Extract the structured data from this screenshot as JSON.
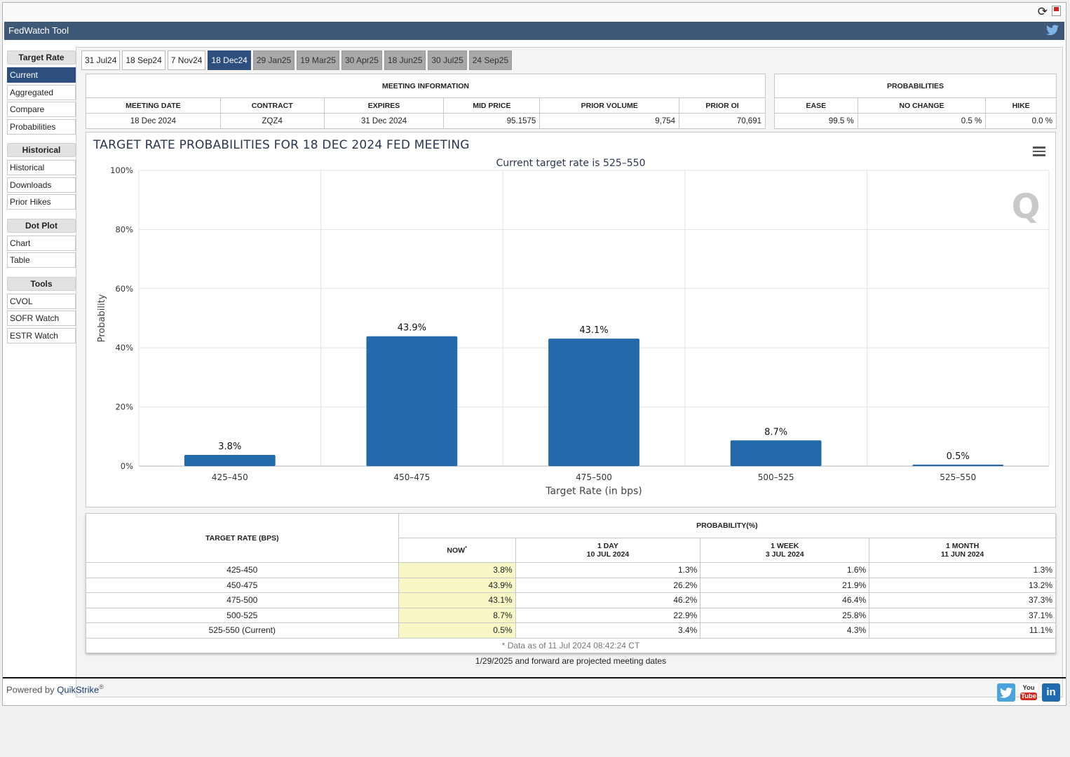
{
  "app": {
    "title": "FedWatch Tool",
    "powered_by": "Powered by",
    "brand": "QuikStrike",
    "reg": "®"
  },
  "icons": {
    "refresh": "refresh-icon",
    "pdf": "pdf-icon",
    "twitter": "twitter-icon",
    "menu": "hamburger-menu-icon"
  },
  "sidebar": {
    "target_rate": "Target Rate",
    "current": "Current",
    "aggregated": "Aggregated",
    "compare": "Compare",
    "probabilities": "Probabilities",
    "historical_hdr": "Historical",
    "historical": "Historical",
    "downloads": "Downloads",
    "prior_hikes": "Prior Hikes",
    "dot_plot": "Dot Plot",
    "chart": "Chart",
    "table": "Table",
    "tools": "Tools",
    "cvol": "CVOL",
    "sofr_watch": "SOFR Watch",
    "estr_watch": "ESTR Watch"
  },
  "tabs": [
    "31 Jul24",
    "18 Sep24",
    "7 Nov24",
    "18 Dec24",
    "29 Jan25",
    "19 Mar25",
    "30 Apr25",
    "18 Jun25",
    "30 Jul25",
    "24 Sep25"
  ],
  "meeting": {
    "header": "MEETING INFORMATION",
    "cols": [
      "MEETING DATE",
      "CONTRACT",
      "EXPIRES",
      "MID PRICE",
      "PRIOR VOLUME",
      "PRIOR OI"
    ],
    "values": [
      "18 Dec 2024",
      "ZQZ4",
      "31 Dec 2024",
      "95.1575",
      "9,754",
      "70,691"
    ]
  },
  "probabilities": {
    "header": "PROBABILITIES",
    "cols": [
      "EASE",
      "NO CHANGE",
      "HIKE"
    ],
    "values": [
      "99.5 %",
      "0.5 %",
      "0.0 %"
    ]
  },
  "chart_data": {
    "type": "bar",
    "title": "TARGET RATE PROBABILITIES FOR 18 DEC 2024 FED MEETING",
    "subtitle": "Current target rate is 525–550",
    "xlabel": "Target Rate (in bps)",
    "ylabel": "Probability",
    "categories": [
      "425–450",
      "450–475",
      "475–500",
      "500–525",
      "525–550"
    ],
    "values": [
      3.8,
      43.9,
      43.1,
      8.7,
      0.5
    ],
    "data_labels": [
      "3.8%",
      "43.9%",
      "43.1%",
      "8.7%",
      "0.5%"
    ],
    "ylim": [
      0,
      100
    ],
    "yticks": [
      0,
      20,
      40,
      60,
      80,
      100
    ],
    "ytick_labels": [
      "0%",
      "20%",
      "40%",
      "60%",
      "80%",
      "100%"
    ],
    "bar_color": "#236aab",
    "grid": true
  },
  "prob_table": {
    "rate_header": "TARGET RATE (BPS)",
    "prob_header": "PROBABILITY(%)",
    "now": "NOW",
    "now_mark": "*",
    "day_label": "1 DAY",
    "day_date": "10 JUL 2024",
    "week_label": "1 WEEK",
    "week_date": "3 JUL 2024",
    "month_label": "1 MONTH",
    "month_date": "11 JUN 2024",
    "rows": [
      {
        "rate": "425-450",
        "now": "3.8%",
        "day": "1.3%",
        "week": "1.6%",
        "month": "1.3%"
      },
      {
        "rate": "450-475",
        "now": "43.9%",
        "day": "26.2%",
        "week": "21.9%",
        "month": "13.2%"
      },
      {
        "rate": "475-500",
        "now": "43.1%",
        "day": "46.2%",
        "week": "46.4%",
        "month": "37.3%"
      },
      {
        "rate": "500-525",
        "now": "8.7%",
        "day": "22.9%",
        "week": "25.8%",
        "month": "37.1%"
      },
      {
        "rate": "525-550 (Current)",
        "now": "0.5%",
        "day": "3.4%",
        "week": "4.3%",
        "month": "11.1%"
      }
    ],
    "as_of": "* Data as of 11 Jul 2024 08:42:24 CT"
  },
  "projected_note": "1/29/2025 and forward are projected meeting dates",
  "social": {
    "youtube_you": "You",
    "youtube_tube": "Tube",
    "linkedin": "in"
  }
}
